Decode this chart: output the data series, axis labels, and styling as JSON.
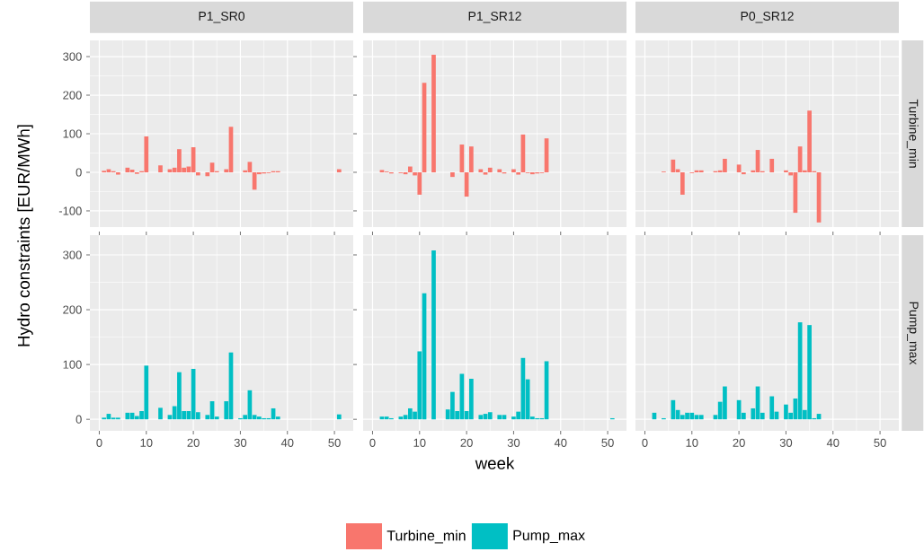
{
  "chart_data": [
    {
      "type": "bar",
      "title": "P1_SR0",
      "ylabel": "Hydro constraints [EUR/MWh]",
      "x": [
        1,
        2,
        3,
        4,
        6,
        7,
        8,
        9,
        10,
        13,
        15,
        16,
        17,
        18,
        19,
        20,
        21,
        23,
        24,
        25,
        27,
        28,
        31,
        32,
        33,
        34,
        35,
        36,
        37,
        38,
        51
      ],
      "series": [
        {
          "name": "Turbine_min",
          "color": "#f8766d",
          "values": [
            4,
            8,
            3,
            -6,
            12,
            7,
            -4,
            3,
            93,
            18,
            8,
            12,
            60,
            12,
            15,
            65,
            -8,
            -10,
            25,
            3,
            8,
            118,
            5,
            27,
            -45,
            -5,
            -3,
            -2,
            3,
            3,
            8
          ]
        }
      ],
      "xlim": [
        -2,
        54
      ],
      "ylim": [
        -142,
        342
      ],
      "xticks": [
        0,
        10,
        20,
        30,
        40,
        50
      ],
      "yticks": [
        -100,
        0,
        100,
        200,
        300
      ],
      "grid": true,
      "tick_labels": "y",
      "legend": "bottom"
    },
    {
      "type": "bar",
      "title": "P1_SR12",
      "x": [
        2,
        3,
        4,
        6,
        7,
        8,
        9,
        10,
        11,
        13,
        17,
        19,
        20,
        21,
        23,
        24,
        25,
        27,
        28,
        30,
        31,
        32,
        33,
        34,
        35,
        36,
        37
      ],
      "series": [
        {
          "color": "#f8766d",
          "values": [
            6,
            2,
            -3,
            -2,
            -5,
            15,
            -8,
            -58,
            232,
            305,
            -12,
            72,
            -63,
            67,
            8,
            -6,
            12,
            8,
            -3,
            8,
            -6,
            98,
            -2,
            -5,
            -3,
            -2,
            88
          ]
        }
      ],
      "xlim": [
        -2,
        54
      ],
      "ylim": [
        -142,
        342
      ],
      "xticks": [
        0,
        10,
        20,
        30,
        40,
        50
      ],
      "yticks": [
        -100,
        0,
        100,
        200,
        300
      ],
      "grid": true,
      "tick_labels": false
    },
    {
      "type": "bar",
      "title": "P0_SR12",
      "y2label": "Turbine_min",
      "x": [
        4,
        6,
        7,
        8,
        10,
        11,
        12,
        15,
        16,
        17,
        20,
        21,
        23,
        24,
        25,
        27,
        30,
        31,
        32,
        33,
        34,
        35,
        36,
        37
      ],
      "series": [
        {
          "color": "#f8766d",
          "values": [
            2,
            33,
            8,
            -58,
            -2,
            5,
            5,
            3,
            5,
            35,
            20,
            -5,
            5,
            58,
            3,
            35,
            5,
            -8,
            -105,
            67,
            5,
            160,
            3,
            -130
          ]
        }
      ],
      "xlim": [
        -2,
        54
      ],
      "ylim": [
        -142,
        342
      ],
      "xticks": [
        0,
        10,
        20,
        30,
        40,
        50
      ],
      "yticks": [
        -100,
        0,
        100,
        200,
        300
      ],
      "grid": true,
      "tick_labels": false
    },
    {
      "type": "bar",
      "x": [
        1,
        2,
        3,
        4,
        6,
        7,
        8,
        9,
        10,
        13,
        15,
        16,
        17,
        18,
        19,
        20,
        21,
        23,
        24,
        25,
        27,
        28,
        30,
        31,
        32,
        33,
        34,
        35,
        36,
        37,
        38,
        51
      ],
      "series": [
        {
          "name": "Pump_max",
          "color": "#00bfc4",
          "values": [
            3,
            10,
            3,
            3,
            12,
            12,
            6,
            15,
            98,
            21,
            8,
            24,
            86,
            15,
            15,
            92,
            13,
            8,
            33,
            5,
            33,
            122,
            2,
            8,
            53,
            8,
            5,
            2,
            2,
            20,
            5,
            9
          ]
        }
      ],
      "xlim": [
        -2,
        54
      ],
      "ylim": [
        -21,
        336
      ],
      "xticks": [
        0,
        10,
        20,
        30,
        40,
        50
      ],
      "yticks": [
        0,
        100,
        200,
        300
      ],
      "grid": true,
      "legend": "bottom"
    },
    {
      "type": "bar",
      "xlabel": "week",
      "x": [
        2,
        3,
        4,
        6,
        7,
        8,
        9,
        10,
        11,
        13,
        16,
        17,
        18,
        19,
        20,
        21,
        23,
        24,
        25,
        27,
        28,
        30,
        31,
        32,
        33,
        34,
        35,
        36,
        37,
        51
      ],
      "series": [
        {
          "color": "#00bfc4",
          "values": [
            5,
            5,
            2,
            5,
            8,
            20,
            14,
            124,
            230,
            308,
            18,
            50,
            15,
            83,
            15,
            74,
            8,
            10,
            13,
            8,
            8,
            5,
            14,
            112,
            73,
            5,
            2,
            2,
            106,
            2
          ]
        }
      ],
      "xlim": [
        -2,
        54
      ],
      "ylim": [
        -21,
        336
      ],
      "xticks": [
        0,
        10,
        20,
        30,
        40,
        50
      ],
      "yticks": [
        0,
        100,
        200,
        300
      ],
      "grid": true,
      "tick_labels": "x"
    },
    {
      "type": "bar",
      "y2label": "Pump_max",
      "x": [
        2,
        4,
        6,
        7,
        8,
        9,
        10,
        11,
        12,
        15,
        16,
        17,
        20,
        21,
        23,
        24,
        25,
        27,
        28,
        30,
        31,
        32,
        33,
        34,
        35,
        36,
        37
      ],
      "series": [
        {
          "color": "#00bfc4",
          "values": [
            12,
            2,
            35,
            17,
            8,
            12,
            12,
            8,
            8,
            8,
            32,
            60,
            35,
            12,
            20,
            60,
            12,
            42,
            14,
            27,
            12,
            38,
            177,
            17,
            172,
            2,
            10
          ]
        }
      ],
      "xlim": [
        -2,
        54
      ],
      "ylim": [
        -21,
        336
      ],
      "xticks": [
        0,
        10,
        20,
        30,
        40,
        50
      ],
      "yticks": [
        0,
        100,
        200,
        300
      ],
      "grid": true,
      "tick_labels": "x"
    }
  ]
}
